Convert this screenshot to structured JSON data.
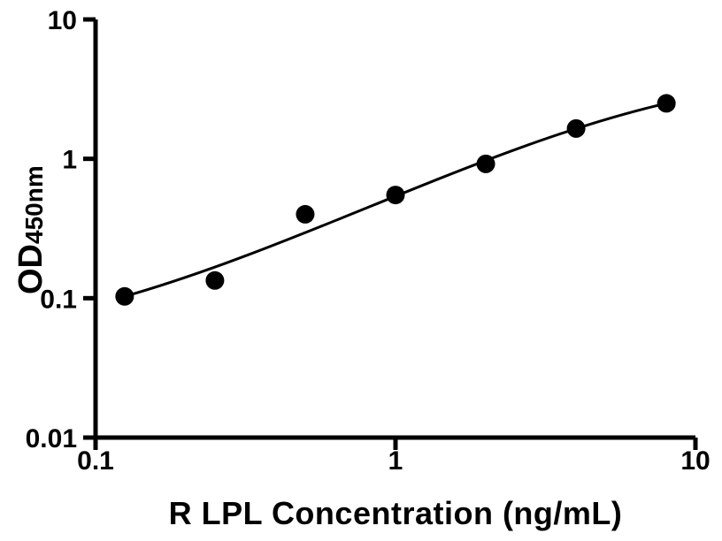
{
  "chart_data": {
    "type": "scatter",
    "title": "",
    "xlabel": "R LPL Concentration (ng/mL)",
    "ylabel": "OD",
    "ylabel_subscript": "450nm",
    "x_scale": "log",
    "y_scale": "log",
    "xlim": [
      0.1,
      10
    ],
    "ylim": [
      0.01,
      10
    ],
    "x_ticks": [
      {
        "value": 0.1,
        "label": "0.1"
      },
      {
        "value": 1,
        "label": "1"
      },
      {
        "value": 10,
        "label": "10"
      }
    ],
    "y_ticks": [
      {
        "value": 0.01,
        "label": "0.01"
      },
      {
        "value": 0.1,
        "label": "0.1"
      },
      {
        "value": 1,
        "label": "1"
      },
      {
        "value": 10,
        "label": "10"
      }
    ],
    "grid": false,
    "legend": false,
    "background_color": "#ffffff",
    "axis_color": "#000000",
    "marker_color": "#000000",
    "line_color": "#000000",
    "series": [
      {
        "name": "standard curve points",
        "marker": "filled-circle",
        "points": [
          {
            "x": 0.125,
            "od": 0.103
          },
          {
            "x": 0.25,
            "od": 0.134
          },
          {
            "x": 0.5,
            "od": 0.4
          },
          {
            "x": 1,
            "od": 0.55
          },
          {
            "x": 2,
            "od": 0.92
          },
          {
            "x": 4,
            "od": 1.65
          },
          {
            "x": 8,
            "od": 2.5
          }
        ]
      }
    ],
    "fit_line": {
      "shape": "cubic-bezier-in-loglog-space",
      "start": {
        "x": 0.125,
        "od": 0.103
      },
      "control1": {
        "x": 0.5,
        "od": 0.242
      },
      "control2": {
        "x": 2.0,
        "od": 1.251
      },
      "end": {
        "x": 8,
        "od": 2.5
      }
    }
  }
}
